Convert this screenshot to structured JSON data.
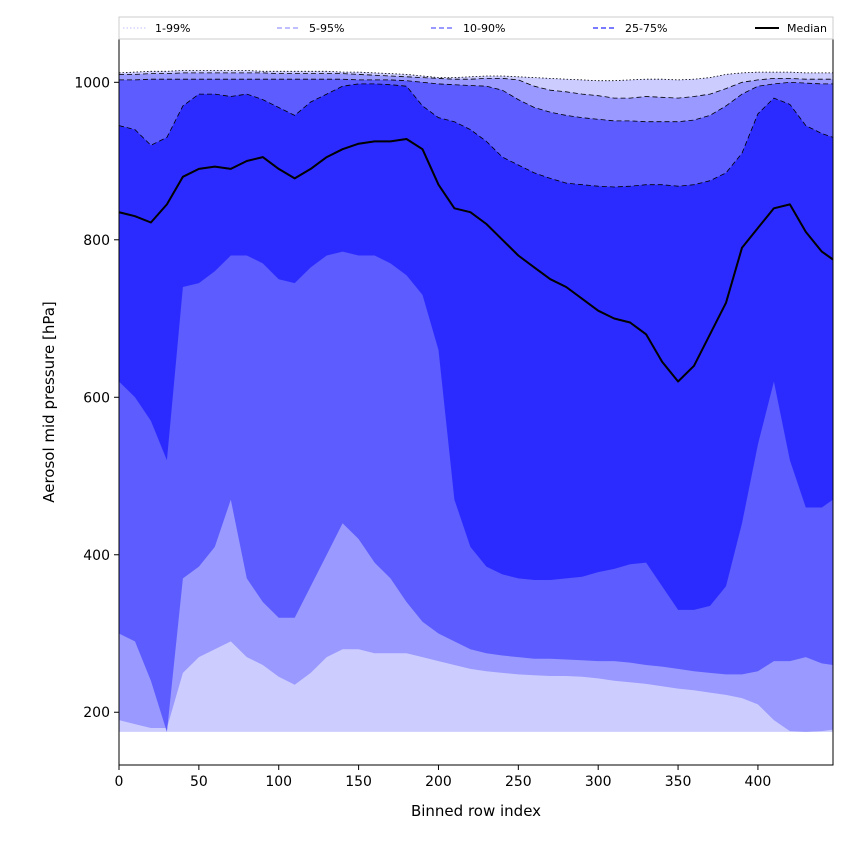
{
  "chart_data": {
    "type": "area",
    "xlabel": "Binned row index",
    "ylabel": "Aerosol mid pressure [hPa]",
    "xlim": [
      0,
      447
    ],
    "ylim": [
      133,
      1055
    ],
    "x_ticks": [
      0,
      50,
      100,
      150,
      200,
      250,
      300,
      350,
      400
    ],
    "y_ticks": [
      200,
      400,
      600,
      800,
      1000
    ],
    "grid": false,
    "legend_position": "top, spanning full width above plot",
    "x": [
      0,
      10,
      20,
      30,
      40,
      50,
      60,
      70,
      80,
      90,
      100,
      110,
      120,
      130,
      140,
      150,
      160,
      170,
      180,
      190,
      200,
      210,
      220,
      230,
      240,
      250,
      260,
      270,
      280,
      290,
      300,
      310,
      320,
      330,
      340,
      350,
      360,
      370,
      380,
      390,
      400,
      410,
      420,
      430,
      440,
      447
    ],
    "series": [
      {
        "name": "1-99%",
        "color": "#ccccff",
        "linestyle": "dotted",
        "low": [
          175,
          175,
          175,
          175,
          175,
          175,
          175,
          175,
          175,
          175,
          175,
          175,
          175,
          175,
          175,
          175,
          175,
          175,
          175,
          175,
          175,
          175,
          175,
          175,
          175,
          175,
          175,
          175,
          175,
          175,
          175,
          175,
          175,
          175,
          175,
          175,
          175,
          175,
          175,
          175,
          175,
          175,
          175,
          175,
          175,
          175
        ],
        "high": [
          1012,
          1013,
          1014,
          1014,
          1015,
          1015,
          1015,
          1015,
          1015,
          1014,
          1014,
          1014,
          1014,
          1014,
          1013,
          1013,
          1012,
          1011,
          1010,
          1008,
          1006,
          1006,
          1007,
          1008,
          1008,
          1007,
          1006,
          1005,
          1004,
          1003,
          1002,
          1002,
          1003,
          1004,
          1004,
          1003,
          1004,
          1006,
          1010,
          1012,
          1013,
          1013,
          1013,
          1012,
          1012,
          1012
        ]
      },
      {
        "name": "5-95%",
        "color": "#9999ff",
        "linestyle": "dashed",
        "low": [
          190,
          185,
          180,
          180,
          250,
          270,
          280,
          290,
          270,
          260,
          245,
          235,
          250,
          270,
          280,
          280,
          275,
          275,
          275,
          270,
          265,
          260,
          255,
          252,
          250,
          248,
          247,
          246,
          246,
          245,
          243,
          240,
          238,
          236,
          233,
          230,
          228,
          225,
          222,
          218,
          210,
          190,
          176,
          175,
          176,
          178
        ],
        "high": [
          1010,
          1010,
          1011,
          1011,
          1012,
          1012,
          1012,
          1012,
          1012,
          1012,
          1011,
          1011,
          1011,
          1011,
          1011,
          1010,
          1009,
          1008,
          1007,
          1006,
          1005,
          1004,
          1004,
          1005,
          1005,
          1003,
          995,
          990,
          988,
          985,
          983,
          980,
          980,
          982,
          981,
          980,
          982,
          985,
          992,
          1000,
          1003,
          1005,
          1005,
          1004,
          1004,
          1004
        ]
      },
      {
        "name": "10-90%",
        "color": "#5c5cff",
        "linestyle": "dashed",
        "low": [
          300,
          290,
          240,
          175,
          370,
          385,
          410,
          470,
          370,
          340,
          320,
          320,
          360,
          400,
          440,
          420,
          390,
          370,
          340,
          315,
          300,
          290,
          280,
          275,
          272,
          270,
          268,
          268,
          267,
          266,
          265,
          265,
          263,
          260,
          258,
          255,
          252,
          250,
          248,
          248,
          252,
          265,
          265,
          270,
          262,
          260
        ],
        "high": [
          1003,
          1003,
          1004,
          1004,
          1004,
          1004,
          1004,
          1004,
          1004,
          1004,
          1004,
          1004,
          1004,
          1004,
          1004,
          1003,
          1003,
          1003,
          1002,
          1000,
          998,
          997,
          996,
          995,
          990,
          978,
          968,
          962,
          958,
          955,
          953,
          951,
          951,
          950,
          950,
          950,
          952,
          958,
          970,
          985,
          995,
          998,
          1000,
          999,
          998,
          998
        ]
      },
      {
        "name": "25-75%",
        "color": "#2b2bff",
        "linestyle": "dashed",
        "low": [
          620,
          600,
          570,
          520,
          740,
          745,
          760,
          780,
          780,
          770,
          750,
          745,
          765,
          780,
          785,
          780,
          780,
          770,
          755,
          730,
          660,
          470,
          410,
          385,
          375,
          370,
          368,
          368,
          370,
          372,
          378,
          382,
          388,
          390,
          360,
          330,
          330,
          335,
          360,
          440,
          540,
          620,
          520,
          460,
          460,
          470
        ],
        "high": [
          945,
          940,
          920,
          930,
          970,
          985,
          985,
          982,
          985,
          978,
          968,
          958,
          975,
          985,
          995,
          998,
          998,
          997,
          995,
          970,
          955,
          950,
          940,
          925,
          905,
          895,
          885,
          878,
          872,
          870,
          868,
          867,
          868,
          870,
          870,
          868,
          870,
          875,
          885,
          910,
          960,
          980,
          972,
          945,
          935,
          930
        ]
      },
      {
        "name": "Median",
        "color": "#000000",
        "linestyle": "solid",
        "values": [
          835,
          830,
          822,
          845,
          880,
          890,
          893,
          890,
          900,
          905,
          890,
          878,
          890,
          905,
          915,
          922,
          925,
          925,
          928,
          915,
          870,
          840,
          835,
          820,
          800,
          780,
          765,
          750,
          740,
          725,
          710,
          700,
          695,
          680,
          645,
          620,
          640,
          680,
          720,
          790,
          815,
          840,
          845,
          810,
          785,
          775
        ]
      }
    ]
  }
}
